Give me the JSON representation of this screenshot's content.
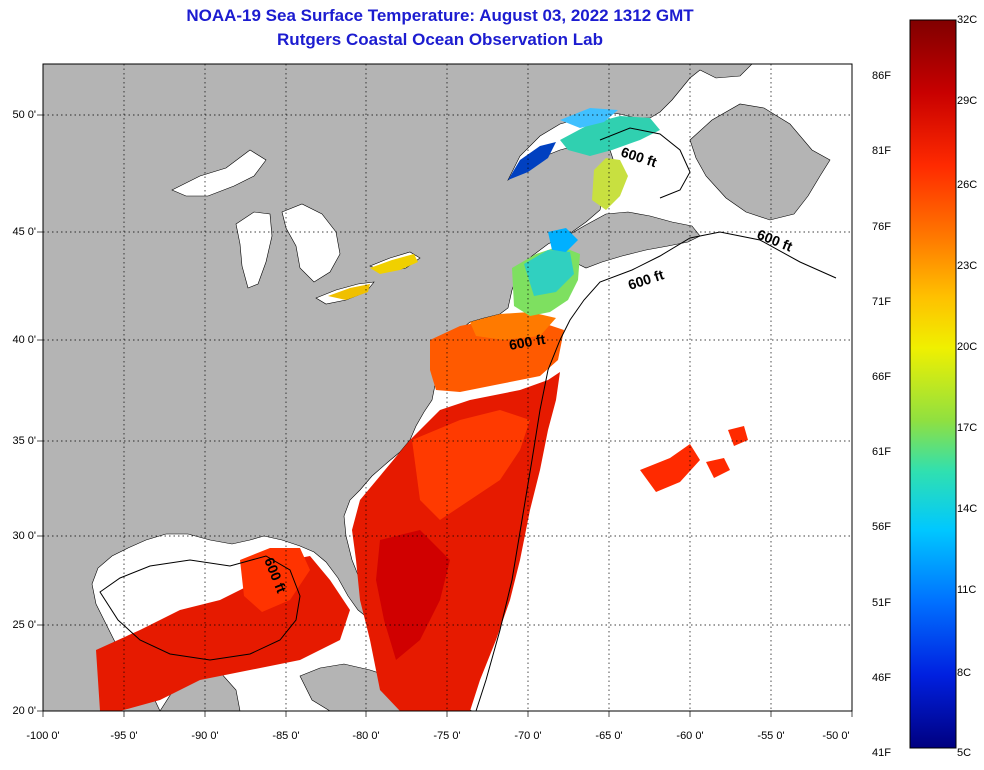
{
  "title": {
    "line1": "NOAA-19 Sea Surface Temperature:  August 03, 2022 1312 GMT",
    "line2": "Rutgers Coastal Ocean Observation Lab"
  },
  "map": {
    "lon_labels": [
      "-100 0'",
      "-95 0'",
      "-90 0'",
      "-85 0'",
      "-80 0'",
      "-75 0'",
      "-70 0'",
      "-65 0'",
      "-60 0'",
      "-55 0'",
      "-50 0'"
    ],
    "lat_labels": [
      "50 0'",
      "45 0'",
      "40 0'",
      "35 0'",
      "30 0'",
      "25 0'",
      "20 0'"
    ],
    "contour_label": "600 ft",
    "land_color": "#b4b4b4",
    "cloud_color": "#ffffff"
  },
  "colorbar": {
    "celsius_labels": [
      "32C",
      "29C",
      "26C",
      "23C",
      "20C",
      "17C",
      "14C",
      "11C",
      "8C",
      "5C"
    ],
    "fahrenheit_labels": [
      "86F",
      "81F",
      "76F",
      "71F",
      "66F",
      "61F",
      "56F",
      "51F",
      "46F",
      "41F"
    ],
    "colors_top_to_bottom": [
      "#800000",
      "#c80000",
      "#ff2a00",
      "#ff7a00",
      "#ffc000",
      "#f0f000",
      "#90e040",
      "#30e0b0",
      "#00c8ff",
      "#0070ff",
      "#0020e0",
      "#000080"
    ]
  }
}
